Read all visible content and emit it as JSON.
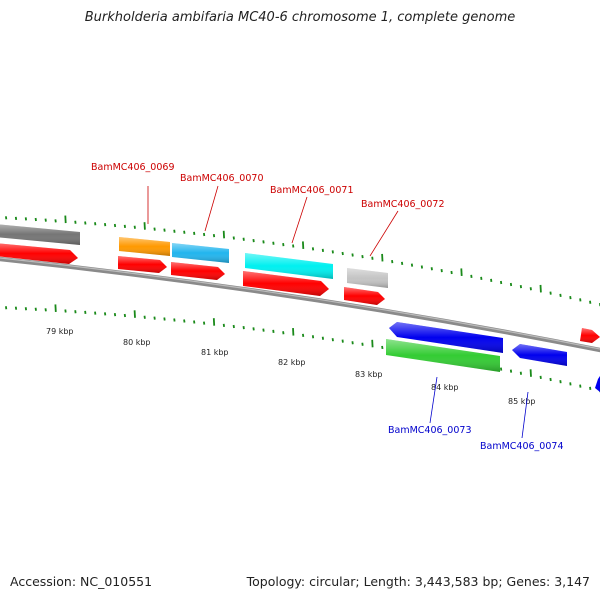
{
  "title": "Burkholderia ambifaria MC40-6 chromosome 1, complete genome",
  "footer": {
    "accession": "Accession: NC_010551",
    "summary": "Topology: circular; Length: 3,443,583 bp; Genes: 3,147"
  },
  "scale": {
    "labels": [
      "79 kbp",
      "80 kbp",
      "81 kbp",
      "82 kbp",
      "83 kbp",
      "84 kbp",
      "85 kbp"
    ]
  },
  "gene_labels": {
    "g0069": "BamMC406_0069",
    "g0070": "BamMC406_0070",
    "g0071": "BamMC406_0071",
    "g0072": "BamMC406_0072",
    "g0073": "BamMC406_0073",
    "g0074": "BamMC406_0074"
  },
  "colors": {
    "cds": "#ff0000",
    "forward_label": "#cc0000",
    "reverse_label": "#0000cc",
    "reverse_gene": "#0000ee",
    "tick": "#1a8a1a",
    "backbone": "#888888",
    "grey_feature": "#777777",
    "orange_feature": "#ff9900",
    "skyblue_feature": "#22b5ee",
    "cyan_feature": "#00f0f0",
    "lightgrey_feature": "#c4c4c4",
    "green_feature": "#33cc33"
  }
}
